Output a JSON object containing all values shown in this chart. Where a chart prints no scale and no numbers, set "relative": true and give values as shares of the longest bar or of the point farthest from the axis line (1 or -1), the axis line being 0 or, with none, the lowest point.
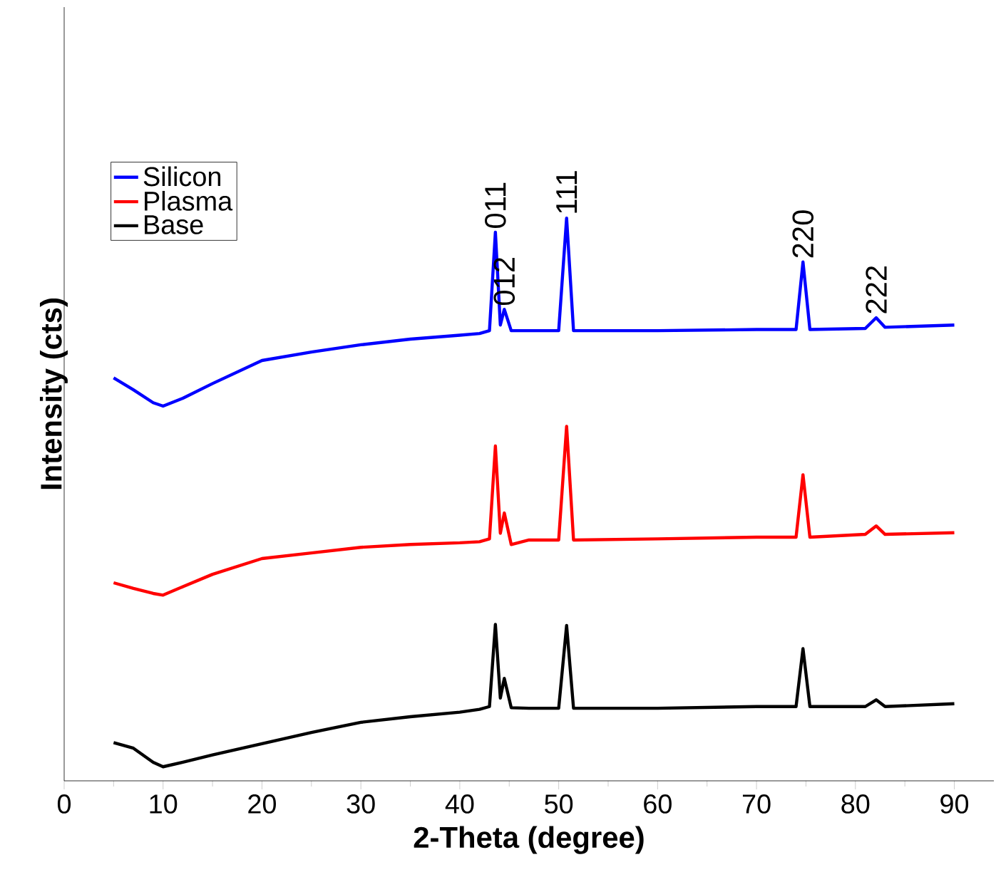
{
  "chart_data": {
    "type": "line",
    "relative": true,
    "xlabel": "2-Theta (degree)",
    "ylabel": "Intensity (cts)",
    "xlim": [
      0,
      94
    ],
    "xticks": [
      0,
      10,
      20,
      30,
      40,
      50,
      60,
      70,
      80,
      90
    ],
    "legend": "top left",
    "grid": false,
    "marker": "none",
    "line_style": "solid",
    "series": [
      {
        "name": "Silicon",
        "color": "#0000ff",
        "x": [
          5,
          7,
          9,
          10,
          12,
          15,
          20,
          25,
          30,
          35,
          40,
          42,
          43,
          43.6,
          44.1,
          44.5,
          45.2,
          47,
          50,
          50.8,
          51.5,
          60,
          70,
          74,
          74.7,
          75.4,
          81,
          82.1,
          83,
          90
        ],
        "values": [
          0.716,
          0.695,
          0.672,
          0.666,
          0.68,
          0.706,
          0.747,
          0.762,
          0.775,
          0.785,
          0.792,
          0.795,
          0.8,
          0.975,
          0.81,
          0.838,
          0.8,
          0.8,
          0.8,
          1.0,
          0.8,
          0.8,
          0.802,
          0.802,
          0.922,
          0.802,
          0.804,
          0.823,
          0.806,
          0.81
        ]
      },
      {
        "name": "Plasma",
        "color": "#ff0000",
        "x": [
          5,
          7,
          9,
          10,
          12,
          15,
          20,
          25,
          30,
          35,
          40,
          42,
          43,
          43.6,
          44.1,
          44.5,
          45.2,
          47,
          50,
          50.8,
          51.5,
          60,
          70,
          74,
          74.7,
          75.4,
          81,
          82.1,
          83,
          90
        ],
        "values": [
          0.352,
          0.342,
          0.333,
          0.33,
          0.345,
          0.367,
          0.395,
          0.405,
          0.415,
          0.42,
          0.423,
          0.425,
          0.43,
          0.595,
          0.44,
          0.476,
          0.42,
          0.428,
          0.428,
          0.63,
          0.428,
          0.43,
          0.433,
          0.433,
          0.544,
          0.433,
          0.438,
          0.453,
          0.438,
          0.441
        ]
      },
      {
        "name": "Base",
        "color": "#000000",
        "x": [
          5,
          7,
          9,
          10,
          12,
          15,
          20,
          25,
          30,
          35,
          40,
          42,
          43,
          43.6,
          44.1,
          44.5,
          45.2,
          47,
          50,
          50.8,
          51.5,
          60,
          70,
          74,
          74.7,
          75.4,
          81,
          82.1,
          83,
          90
        ],
        "values": [
          0.068,
          0.058,
          0.033,
          0.025,
          0.033,
          0.046,
          0.066,
          0.086,
          0.104,
          0.114,
          0.122,
          0.127,
          0.132,
          0.278,
          0.147,
          0.182,
          0.13,
          0.129,
          0.129,
          0.276,
          0.129,
          0.129,
          0.132,
          0.132,
          0.235,
          0.132,
          0.132,
          0.144,
          0.132,
          0.137
        ]
      }
    ],
    "annotations": [
      {
        "text": "011",
        "x": 43.6,
        "y": 0.975
      },
      {
        "text": "012",
        "x": 44.5,
        "y": 0.838
      },
      {
        "text": "111",
        "x": 50.8,
        "y": 1.0
      },
      {
        "text": "220",
        "x": 74.7,
        "y": 0.922
      },
      {
        "text": "222",
        "x": 82.1,
        "y": 0.823
      }
    ]
  }
}
